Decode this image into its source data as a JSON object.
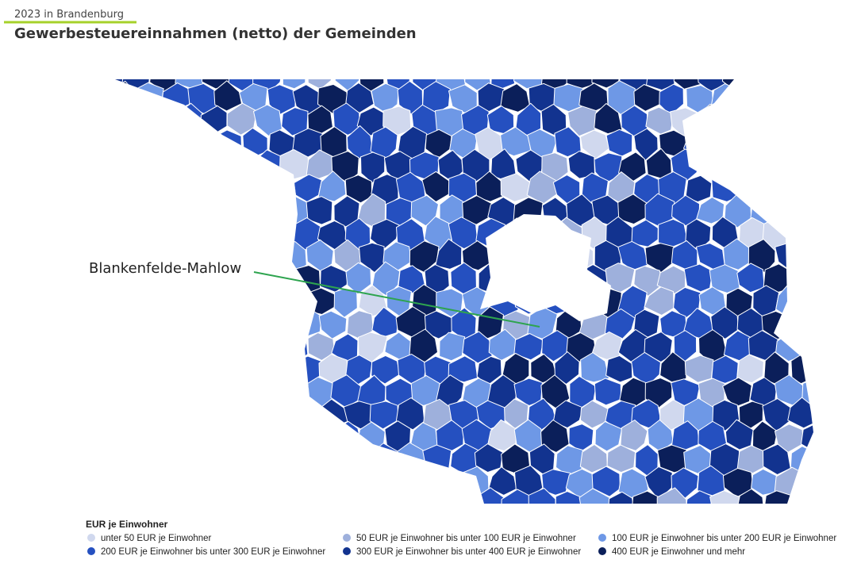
{
  "header": {
    "subtitle": "2023 in Brandenburg",
    "title": "Gewerbesteuereinnahmen (netto) der Gemeinden"
  },
  "map": {
    "annotation": "Blankenfelde-Mahlow"
  },
  "legend": {
    "title": "EUR je Einwohner",
    "items": [
      {
        "label": "unter 50 EUR je Einwohner",
        "color": "#d0d8ee"
      },
      {
        "label": "50 EUR je Einwohner bis unter 100 EUR je Einwohner",
        "color": "#9eb0dc"
      },
      {
        "label": "100 EUR je Einwohner bis unter 200 EUR je Einwohner",
        "color": "#6e98e6"
      },
      {
        "label": "200 EUR je Einwohner bis unter 300 EUR je Einwohner",
        "color": "#2550c0"
      },
      {
        "label": "300 EUR je Einwohner bis unter 400 EUR je Einwohner",
        "color": "#12338f"
      },
      {
        "label": "400 EUR je Einwohner und mehr",
        "color": "#0b1f5a"
      }
    ]
  }
}
